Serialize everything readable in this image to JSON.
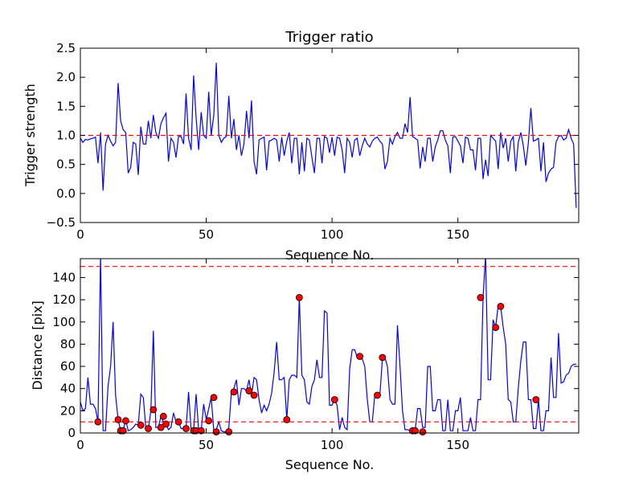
{
  "chart_data": [
    {
      "type": "line",
      "title": "Trigger ratio",
      "xlabel": "Sequence No.",
      "ylabel": "Trigger strength",
      "xlim": [
        0,
        198
      ],
      "ylim": [
        -0.5,
        2.5
      ],
      "xticks": [
        "0",
        "50",
        "100",
        "150"
      ],
      "xtick_values": [
        0,
        50,
        100,
        150
      ],
      "yticks": [
        "−0.5",
        "0.0",
        "0.5",
        "1.0",
        "1.5",
        "2.0",
        "2.5"
      ],
      "ytick_values": [
        -0.5,
        0.0,
        0.5,
        1.0,
        1.5,
        2.0,
        2.5
      ],
      "threshold": 1.0,
      "series": [
        {
          "name": "trigger strength",
          "color": "#0000ff",
          "values": [
            0.95,
            0.88,
            0.93,
            0.92,
            0.94,
            0.95,
            0.97,
            0.52,
            1.05,
            0.05,
            0.85,
            1.0,
            0.9,
            0.82,
            0.88,
            1.9,
            1.25,
            1.1,
            1.05,
            0.35,
            0.45,
            0.88,
            0.85,
            0.32,
            1.15,
            0.85,
            0.85,
            1.25,
            0.95,
            1.35,
            1.05,
            0.95,
            1.2,
            1.3,
            1.38,
            0.55,
            0.95,
            0.88,
            0.62,
            0.98,
            0.98,
            0.85,
            1.72,
            0.95,
            0.75,
            2.03,
            1.3,
            0.75,
            1.4,
            1.0,
            0.95,
            1.75,
            1.0,
            1.35,
            2.25,
            1.0,
            0.88,
            0.95,
            0.98,
            1.68,
            0.95,
            1.28,
            0.75,
            1.0,
            0.65,
            0.85,
            1.42,
            0.95,
            1.6,
            0.55,
            0.33,
            0.92,
            0.95,
            0.97,
            0.4,
            0.9,
            0.92,
            0.95,
            0.92,
            0.55,
            0.97,
            0.65,
            0.9,
            1.05,
            0.52,
            0.95,
            0.95,
            0.33,
            0.88,
            0.38,
            0.95,
            0.92,
            0.62,
            0.35,
            0.95,
            0.95,
            0.52,
            0.98,
            0.95,
            0.7,
            0.97,
            0.65,
            0.97,
            0.95,
            0.75,
            0.35,
            0.95,
            0.88,
            0.62,
            0.92,
            0.95,
            0.65,
            0.82,
            0.95,
            0.85,
            0.8,
            0.9,
            0.95,
            0.97,
            0.9,
            0.85,
            0.42,
            0.55,
            0.95,
            0.85,
            0.98,
            1.05,
            0.95,
            0.95,
            1.2,
            1.05,
            1.66,
            0.98,
            0.95,
            0.92,
            0.43,
            0.8,
            0.55,
            0.95,
            0.95,
            0.55,
            0.8,
            0.92,
            1.08,
            1.08,
            0.92,
            0.82,
            0.35,
            0.97,
            0.98,
            0.9,
            0.82,
            0.52,
            0.97,
            0.95,
            0.75,
            0.75,
            0.4,
            0.95,
            0.95,
            0.25,
            0.58,
            0.3,
            1.0,
            0.95,
            0.9,
            0.42,
            1.05,
            0.78,
            0.95,
            0.55,
            0.9,
            0.98,
            0.38,
            0.88,
            1.05,
            0.82,
            0.48,
            0.88,
            1.47,
            0.9,
            0.92,
            0.95,
            0.38,
            0.88,
            0.2,
            0.35,
            0.42,
            0.45,
            0.88,
            0.98,
            1.0,
            0.92,
            0.95,
            1.1,
            0.95,
            0.85,
            -0.25
          ]
        }
      ]
    },
    {
      "type": "line",
      "title": "",
      "xlabel": "Sequence No.",
      "ylabel": "Distance [pix]",
      "xlim": [
        0,
        198
      ],
      "ylim": [
        0,
        157
      ],
      "xticks": [
        "0",
        "50",
        "100",
        "150"
      ],
      "xtick_values": [
        0,
        50,
        100,
        150
      ],
      "yticks": [
        "0",
        "20",
        "40",
        "60",
        "80",
        "100",
        "120",
        "140"
      ],
      "ytick_values": [
        0,
        20,
        40,
        60,
        80,
        100,
        120,
        140
      ],
      "thresholds": [
        10,
        150
      ],
      "series": [
        {
          "name": "distance",
          "color": "#0000ff",
          "values": [
            28,
            20,
            22,
            50,
            26,
            26,
            22,
            10,
            160,
            2,
            2,
            42,
            60,
            100,
            34,
            12,
            2,
            2,
            12,
            2,
            3,
            5,
            8,
            7,
            35,
            32,
            5,
            3,
            20,
            92,
            5,
            5,
            15,
            10,
            8,
            3,
            5,
            18,
            10,
            10,
            4,
            4,
            4,
            37,
            3,
            2,
            35,
            2,
            2,
            26,
            12,
            22,
            32,
            2,
            3,
            10,
            2,
            1,
            1,
            5,
            37,
            40,
            48,
            25,
            40,
            40,
            38,
            48,
            34,
            50,
            48,
            30,
            18,
            25,
            20,
            26,
            36,
            55,
            82,
            48,
            48,
            50,
            12,
            48,
            52,
            52,
            50,
            122,
            52,
            48,
            28,
            26,
            42,
            48,
            66,
            50,
            50,
            110,
            108,
            25,
            25,
            30,
            25,
            3,
            14,
            5,
            3,
            58,
            75,
            75,
            68,
            68,
            67,
            60,
            30,
            10,
            10,
            35,
            34,
            34,
            67,
            68,
            60,
            30,
            26,
            26,
            97,
            60,
            20,
            3,
            3,
            2,
            2,
            2,
            22,
            22,
            5,
            5,
            60,
            60,
            20,
            20,
            30,
            30,
            2,
            2,
            30,
            2,
            2,
            20,
            20,
            32,
            2,
            2,
            2,
            14,
            2,
            2,
            30,
            30,
            122,
            160,
            48,
            48,
            102,
            95,
            115,
            114,
            95,
            80,
            30,
            28,
            10,
            10,
            40,
            65,
            82,
            82,
            30,
            30,
            4,
            4,
            30,
            2,
            2,
            20,
            20,
            68,
            32,
            32,
            90,
            45,
            46,
            52,
            54,
            60,
            62,
            62
          ]
        }
      ],
      "markers": {
        "name": "detections",
        "color": "#ff0000",
        "x": [
          7,
          15,
          16,
          17,
          18,
          24,
          27,
          29,
          32,
          33,
          34,
          39,
          42,
          45,
          46,
          48,
          51,
          53,
          54,
          59,
          61,
          67,
          69,
          82,
          87,
          101,
          111,
          118,
          120,
          132,
          133,
          136,
          159,
          165,
          167,
          181
        ],
        "y": [
          10,
          12,
          2,
          2,
          11,
          7,
          4,
          21,
          5,
          15,
          8,
          10,
          4,
          2,
          2,
          2,
          11,
          32,
          1,
          1,
          37,
          38,
          34,
          12,
          122,
          30,
          69,
          34,
          68,
          2,
          2,
          1,
          122,
          95,
          114,
          30
        ]
      }
    }
  ]
}
